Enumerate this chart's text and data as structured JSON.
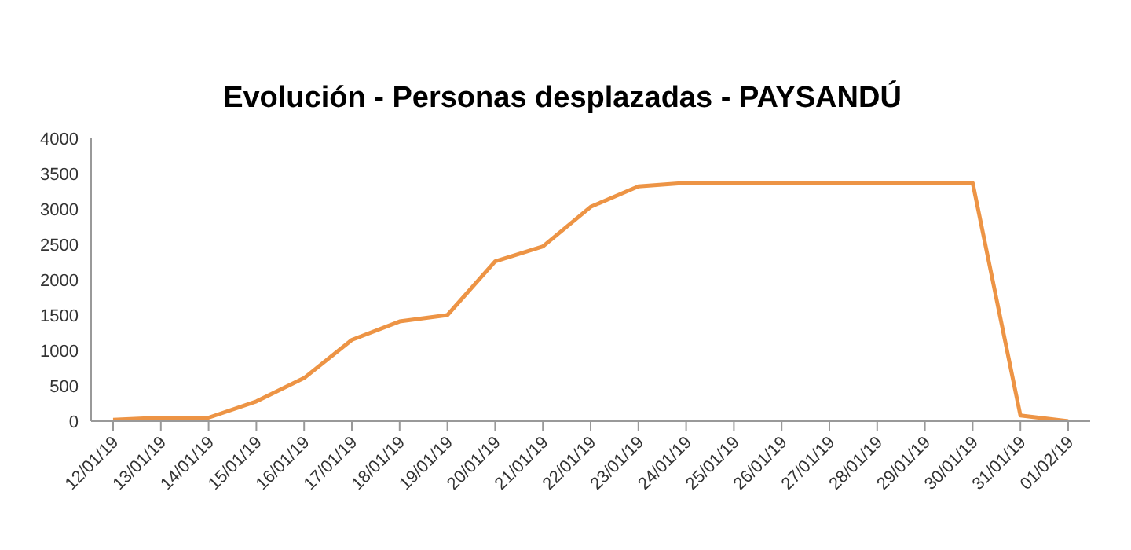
{
  "chart_data": {
    "type": "line",
    "title": "Evolución - Personas desplazadas - PAYSANDÚ",
    "categories": [
      "12/01/19",
      "13/01/19",
      "14/01/19",
      "15/01/19",
      "16/01/19",
      "17/01/19",
      "18/01/19",
      "19/01/19",
      "20/01/19",
      "21/01/19",
      "22/01/19",
      "23/01/19",
      "24/01/19",
      "25/01/19",
      "26/01/19",
      "27/01/19",
      "28/01/19",
      "29/01/19",
      "30/01/19",
      "31/01/19",
      "01/02/19"
    ],
    "series": [
      {
        "color": "#ed9445",
        "values": [
          20,
          50,
          50,
          280,
          610,
          1150,
          1410,
          1500,
          2260,
          2470,
          3030,
          3320,
          3370,
          3370,
          3370,
          3370,
          3370,
          3370,
          3370,
          80,
          0
        ]
      }
    ],
    "ylim": [
      0,
      4000
    ],
    "yticks": [
      0,
      500,
      1000,
      1500,
      2000,
      2500,
      3000,
      3500,
      4000
    ],
    "grid": false,
    "legend": false,
    "marker": "none",
    "line_style": "solid"
  }
}
